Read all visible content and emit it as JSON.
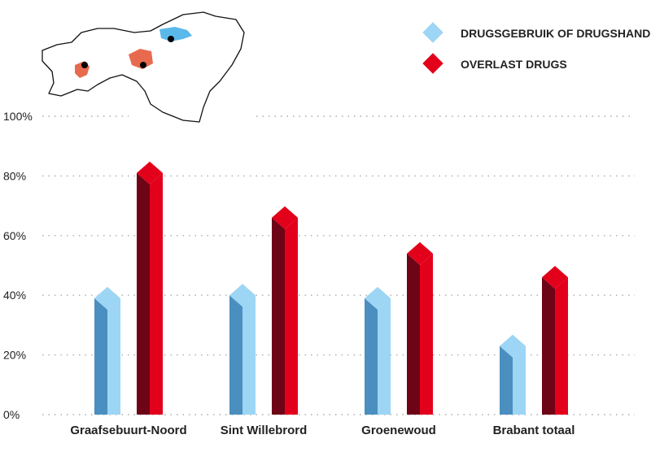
{
  "chart_data": {
    "type": "bar",
    "title": "",
    "xlabel": "",
    "ylabel": "",
    "ylim": [
      0,
      100
    ],
    "yticks": [
      "0%",
      "20%",
      "40%",
      "60%",
      "80%",
      "100%"
    ],
    "categories": [
      "Graafsebuurt-Noord",
      "Sint Willebrord",
      "Groenewoud",
      "Brabant totaal"
    ],
    "series": [
      {
        "name": "DRUGSGEBRUIK OF DRUGSHANDEL",
        "values": [
          39,
          40,
          39,
          23
        ],
        "color": "#9dd5f5",
        "shade": "#4a8fbf"
      },
      {
        "name": "OVERLAST DRUGS",
        "values": [
          81,
          66,
          54,
          46
        ],
        "color": "#e3001b",
        "shade": "#6e0517"
      }
    ],
    "grid": "dotted horizontal",
    "legend_position": "top-right"
  },
  "map": {
    "highlight_colors": [
      "#5bb8ea",
      "#e86a4e"
    ],
    "marker_color": "#000000"
  }
}
